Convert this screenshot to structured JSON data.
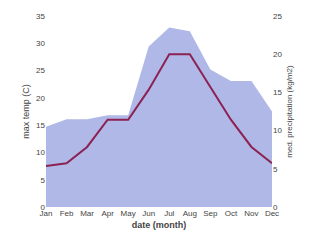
{
  "chart_data": {
    "type": "line",
    "xlabel": "date (month)",
    "ylabel": "max temp (C)",
    "y2label": "med. precipitation (kg/m2)",
    "categories": [
      "Jan",
      "Feb",
      "Mar",
      "Apr",
      "May",
      "Jun",
      "Jul",
      "Aug",
      "Sep",
      "Oct",
      "Nov",
      "Dec"
    ],
    "series": [
      {
        "type": "area",
        "axis": "y2",
        "color": "#b0b8e8",
        "values": [
          10.5,
          11.5,
          11.5,
          12.0,
          12.0,
          21.0,
          23.5,
          23.0,
          18.0,
          16.5,
          16.5,
          12.5
        ]
      },
      {
        "type": "line",
        "color": "#8B2252",
        "values": [
          7.5,
          8.0,
          11.0,
          16.0,
          16.0,
          21.5,
          28.0,
          28.0,
          22.0,
          16.0,
          11.0,
          8.0
        ]
      }
    ],
    "ylim": [
      0,
      35
    ],
    "yticks": [
      0,
      5,
      10,
      15,
      20,
      25,
      30,
      35
    ],
    "y2lim": [
      0,
      25
    ],
    "y2ticks": [
      0,
      5,
      10,
      15,
      20,
      25
    ],
    "grid": false
  }
}
